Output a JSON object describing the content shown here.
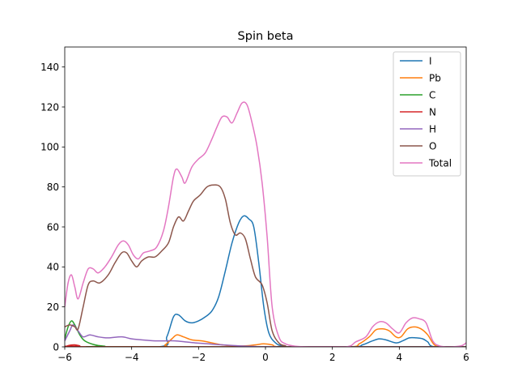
{
  "chart_data": {
    "type": "line",
    "title": "Spin beta",
    "xlabel": "",
    "ylabel": "",
    "xlim": [
      -6,
      6
    ],
    "ylim": [
      0,
      150
    ],
    "xticks": [
      -6,
      -4,
      -2,
      0,
      2,
      4,
      6
    ],
    "yticks": [
      0,
      20,
      40,
      60,
      80,
      100,
      120,
      140
    ],
    "grid": false,
    "legend_position": "top-right",
    "series": [
      {
        "name": "I",
        "color": "#1f77b4",
        "points": [
          [
            -6,
            0
          ],
          [
            -3.2,
            0
          ],
          [
            -2.95,
            5
          ],
          [
            -2.75,
            15
          ],
          [
            -2.6,
            16
          ],
          [
            -2.4,
            13
          ],
          [
            -2.2,
            12
          ],
          [
            -2.0,
            13
          ],
          [
            -1.8,
            15
          ],
          [
            -1.6,
            18
          ],
          [
            -1.4,
            25
          ],
          [
            -1.2,
            38
          ],
          [
            -1.0,
            52
          ],
          [
            -0.8,
            62
          ],
          [
            -0.65,
            65.5
          ],
          [
            -0.5,
            64
          ],
          [
            -0.35,
            60
          ],
          [
            -0.2,
            42
          ],
          [
            -0.05,
            20
          ],
          [
            0.1,
            7
          ],
          [
            0.3,
            2
          ],
          [
            0.5,
            0.5
          ],
          [
            0.8,
            0
          ],
          [
            2.6,
            0
          ],
          [
            2.9,
            1
          ],
          [
            3.2,
            3
          ],
          [
            3.4,
            4
          ],
          [
            3.6,
            3.5
          ],
          [
            3.9,
            2
          ],
          [
            4.1,
            3
          ],
          [
            4.3,
            4.5
          ],
          [
            4.5,
            4.5
          ],
          [
            4.7,
            4
          ],
          [
            4.85,
            2.5
          ],
          [
            5.05,
            0
          ],
          [
            6,
            0
          ]
        ]
      },
      {
        "name": "Pb",
        "color": "#ff7f0e",
        "points": [
          [
            -6,
            0
          ],
          [
            -3.2,
            0
          ],
          [
            -3.0,
            1
          ],
          [
            -2.8,
            4
          ],
          [
            -2.65,
            6
          ],
          [
            -2.45,
            5
          ],
          [
            -2.2,
            3.5
          ],
          [
            -1.9,
            3
          ],
          [
            -1.6,
            2
          ],
          [
            -1.3,
            1
          ],
          [
            -1.0,
            0.5
          ],
          [
            -0.6,
            0.5
          ],
          [
            -0.3,
            1
          ],
          [
            -0.05,
            1.5
          ],
          [
            0.2,
            1
          ],
          [
            0.5,
            0
          ],
          [
            2.5,
            0
          ],
          [
            2.8,
            1.5
          ],
          [
            3.1,
            5
          ],
          [
            3.3,
            8.5
          ],
          [
            3.5,
            9
          ],
          [
            3.7,
            8
          ],
          [
            3.9,
            5
          ],
          [
            4.05,
            5
          ],
          [
            4.25,
            9
          ],
          [
            4.45,
            10
          ],
          [
            4.65,
            9
          ],
          [
            4.85,
            6
          ],
          [
            5.05,
            1
          ],
          [
            5.3,
            0
          ],
          [
            6,
            0
          ]
        ]
      },
      {
        "name": "C",
        "color": "#2ca02c",
        "points": [
          [
            -6,
            4
          ],
          [
            -5.9,
            10
          ],
          [
            -5.8,
            13
          ],
          [
            -5.7,
            11
          ],
          [
            -5.55,
            6
          ],
          [
            -5.4,
            3
          ],
          [
            -5.1,
            1
          ],
          [
            -4.8,
            0.3
          ],
          [
            -4.5,
            0
          ],
          [
            6,
            0
          ]
        ]
      },
      {
        "name": "N",
        "color": "#d62728",
        "points": [
          [
            -6,
            0
          ],
          [
            -5.85,
            0.8
          ],
          [
            -5.7,
            1
          ],
          [
            -5.55,
            0.5
          ],
          [
            -5.4,
            0
          ],
          [
            6,
            0
          ]
        ]
      },
      {
        "name": "H",
        "color": "#9467bd",
        "points": [
          [
            -6,
            3
          ],
          [
            -5.85,
            8
          ],
          [
            -5.75,
            11
          ],
          [
            -5.6,
            8
          ],
          [
            -5.45,
            5
          ],
          [
            -5.25,
            6
          ],
          [
            -5.0,
            5
          ],
          [
            -4.7,
            4.5
          ],
          [
            -4.3,
            5
          ],
          [
            -4.0,
            4
          ],
          [
            -3.7,
            3.5
          ],
          [
            -3.3,
            3
          ],
          [
            -3.0,
            3
          ],
          [
            -2.7,
            3
          ],
          [
            -2.4,
            2.5
          ],
          [
            -2.1,
            2
          ],
          [
            -1.7,
            1.5
          ],
          [
            -1.3,
            1
          ],
          [
            -0.8,
            0.5
          ],
          [
            -0.3,
            0.2
          ],
          [
            0,
            0
          ],
          [
            6,
            0
          ]
        ]
      },
      {
        "name": "O",
        "color": "#8c564b",
        "points": [
          [
            -6,
            10
          ],
          [
            -5.85,
            11
          ],
          [
            -5.7,
            10
          ],
          [
            -5.6,
            9
          ],
          [
            -5.45,
            20
          ],
          [
            -5.3,
            31
          ],
          [
            -5.15,
            33
          ],
          [
            -4.95,
            32
          ],
          [
            -4.7,
            36
          ],
          [
            -4.5,
            42
          ],
          [
            -4.3,
            47
          ],
          [
            -4.15,
            47
          ],
          [
            -4.0,
            43
          ],
          [
            -3.85,
            40
          ],
          [
            -3.7,
            43
          ],
          [
            -3.5,
            45
          ],
          [
            -3.3,
            45
          ],
          [
            -3.1,
            48
          ],
          [
            -2.9,
            52
          ],
          [
            -2.75,
            60
          ],
          [
            -2.6,
            65
          ],
          [
            -2.45,
            63
          ],
          [
            -2.3,
            68
          ],
          [
            -2.15,
            73
          ],
          [
            -1.95,
            76
          ],
          [
            -1.75,
            80
          ],
          [
            -1.55,
            81
          ],
          [
            -1.35,
            80
          ],
          [
            -1.2,
            74
          ],
          [
            -1.05,
            62
          ],
          [
            -0.9,
            56
          ],
          [
            -0.75,
            57
          ],
          [
            -0.6,
            54
          ],
          [
            -0.45,
            44
          ],
          [
            -0.3,
            35
          ],
          [
            -0.1,
            31
          ],
          [
            0.05,
            22
          ],
          [
            0.2,
            8
          ],
          [
            0.4,
            2
          ],
          [
            0.6,
            0.5
          ],
          [
            0.8,
            0
          ],
          [
            6,
            0
          ]
        ]
      },
      {
        "name": "Total",
        "color": "#e377c2",
        "points": [
          [
            -6,
            20
          ],
          [
            -5.9,
            32
          ],
          [
            -5.8,
            36
          ],
          [
            -5.7,
            30
          ],
          [
            -5.6,
            24
          ],
          [
            -5.45,
            32
          ],
          [
            -5.3,
            39
          ],
          [
            -5.15,
            39
          ],
          [
            -5.0,
            37
          ],
          [
            -4.8,
            40
          ],
          [
            -4.6,
            45
          ],
          [
            -4.4,
            51
          ],
          [
            -4.25,
            53
          ],
          [
            -4.1,
            51
          ],
          [
            -3.95,
            46
          ],
          [
            -3.8,
            44
          ],
          [
            -3.65,
            47
          ],
          [
            -3.45,
            48
          ],
          [
            -3.25,
            50
          ],
          [
            -3.05,
            58
          ],
          [
            -2.9,
            70
          ],
          [
            -2.75,
            85
          ],
          [
            -2.65,
            89
          ],
          [
            -2.5,
            85
          ],
          [
            -2.4,
            82
          ],
          [
            -2.2,
            90
          ],
          [
            -2.0,
            94
          ],
          [
            -1.8,
            97
          ],
          [
            -1.6,
            104
          ],
          [
            -1.45,
            110
          ],
          [
            -1.3,
            115
          ],
          [
            -1.15,
            115
          ],
          [
            -1.0,
            112
          ],
          [
            -0.85,
            117
          ],
          [
            -0.7,
            122
          ],
          [
            -0.55,
            121
          ],
          [
            -0.4,
            112
          ],
          [
            -0.25,
            100
          ],
          [
            -0.1,
            82
          ],
          [
            0.05,
            55
          ],
          [
            0.2,
            20
          ],
          [
            0.4,
            5
          ],
          [
            0.6,
            1.5
          ],
          [
            0.9,
            0.3
          ],
          [
            1.3,
            0
          ],
          [
            2.4,
            0
          ],
          [
            2.7,
            2.5
          ],
          [
            3.0,
            5
          ],
          [
            3.2,
            10
          ],
          [
            3.4,
            12.5
          ],
          [
            3.6,
            12
          ],
          [
            3.8,
            9
          ],
          [
            4.0,
            7
          ],
          [
            4.2,
            12
          ],
          [
            4.4,
            14.5
          ],
          [
            4.6,
            14
          ],
          [
            4.8,
            12
          ],
          [
            5.0,
            3
          ],
          [
            5.2,
            0.5
          ],
          [
            5.5,
            0
          ],
          [
            5.85,
            0.5
          ],
          [
            6,
            2
          ]
        ]
      }
    ]
  }
}
